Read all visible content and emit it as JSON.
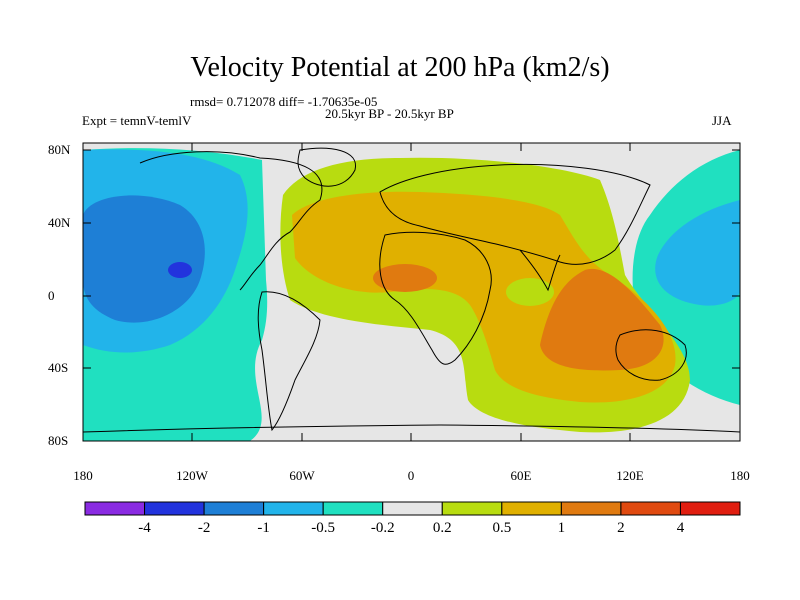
{
  "header": {
    "title": "Velocity Potential at 200 hPa (km2/s)",
    "stats": "rmsd= 0.712078 diff= -1.70635e-05",
    "period": "20.5kyr BP - 20.5kyr BP",
    "experiment": "Expt = temnV-temlV",
    "season": "JJA"
  },
  "axes": {
    "lat_labels": [
      "80N",
      "40N",
      "0",
      "40S",
      "80S"
    ],
    "lon_labels": [
      "180",
      "120W",
      "60W",
      "0",
      "60E",
      "120E",
      "180"
    ]
  },
  "colorbar": {
    "labels": [
      "-4",
      "-2",
      "-1",
      "-0.5",
      "-0.2",
      "0.2",
      "0.5",
      "1",
      "2",
      "4"
    ],
    "colors": [
      "#8a2be2",
      "#2233dd",
      "#1e7fd6",
      "#22b4ea",
      "#20e0c0",
      "#e6e6e6",
      "#b8dc10",
      "#e0b000",
      "#e07a10",
      "#e04a10",
      "#e01e10"
    ]
  },
  "map_colors": {
    "land_outline": "#000000",
    "neutral": "#e6e6e6"
  }
}
